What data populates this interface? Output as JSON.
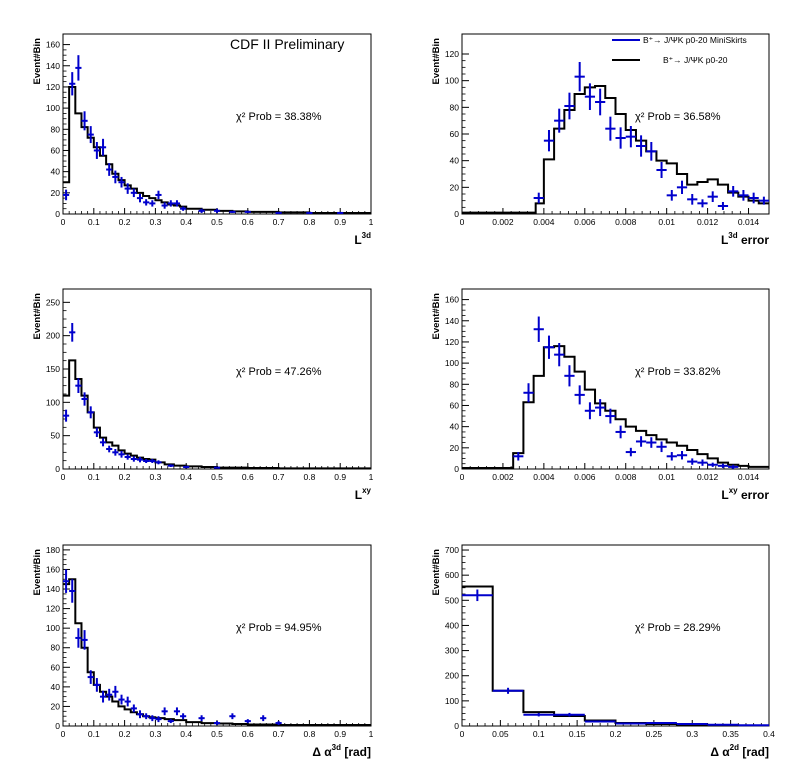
{
  "colors": {
    "data": "#0000cc",
    "mc": "#000000",
    "frame": "#000000"
  },
  "figure_text": {
    "preliminary": "CDF II Preliminary",
    "legend_data": "B⁺→ J/ΨK p0-20 MiniSkirts",
    "legend_mc": "B⁺→ J/ΨK p0-20"
  },
  "chart_data": [
    {
      "type": "histogram",
      "ylabel": "Event#Bin",
      "xlabel_main": "L",
      "xlabel_sup": "3d",
      "xlabel_suffix": "",
      "chi_label": "χ² Prob = 38.38%",
      "xlim": [
        0,
        1
      ],
      "ylim": [
        0,
        170
      ],
      "xticks": [
        0,
        0.1,
        0.2,
        0.3,
        0.4,
        0.5,
        0.6,
        0.7,
        0.8,
        0.9,
        1
      ],
      "xtick_labels": [
        "0",
        "0.1",
        "0.2",
        "0.3",
        "0.4",
        "0.5",
        "0.6",
        "0.7",
        "0.8",
        "0.9",
        "1"
      ],
      "yticks": [
        0,
        20,
        40,
        60,
        80,
        100,
        120,
        140,
        160
      ],
      "ytick_labels": [
        "0",
        "20",
        "40",
        "60",
        "80",
        "100",
        "120",
        "140",
        "160"
      ],
      "mc_edges": [
        0,
        0.02,
        0.04,
        0.06,
        0.08,
        0.1,
        0.12,
        0.14,
        0.16,
        0.18,
        0.2,
        0.22,
        0.24,
        0.26,
        0.28,
        0.3,
        0.32,
        0.34,
        0.36,
        0.38,
        0.4,
        0.45,
        0.5,
        0.55,
        0.6,
        0.7,
        0.8,
        0.9,
        1.0
      ],
      "mc_values": [
        30,
        120,
        95,
        82,
        72,
        63,
        55,
        47,
        38,
        32,
        27,
        24,
        20,
        17,
        15,
        13,
        11,
        9,
        8,
        7,
        5,
        4,
        3,
        2.5,
        2,
        1.5,
        1,
        1
      ],
      "data_x": [
        0.01,
        0.03,
        0.05,
        0.07,
        0.09,
        0.11,
        0.13,
        0.15,
        0.17,
        0.19,
        0.21,
        0.23,
        0.25,
        0.27,
        0.29,
        0.31,
        0.33,
        0.35,
        0.37,
        0.39,
        0.45,
        0.5,
        0.55,
        0.6,
        0.7,
        0.8,
        0.9
      ],
      "data_y": [
        18,
        123,
        138,
        88,
        75,
        60,
        63,
        42,
        35,
        30,
        24,
        20,
        15,
        11,
        10,
        18,
        8,
        10,
        10,
        5,
        3,
        3,
        2,
        2,
        1,
        1,
        1
      ],
      "data_xerr": 0.01,
      "data_yerr": [
        5,
        11,
        12,
        9,
        8,
        8,
        8,
        6,
        6,
        5,
        5,
        4,
        4,
        3,
        3,
        4,
        3,
        3,
        3,
        2,
        2,
        2,
        1,
        1,
        1,
        1,
        1
      ]
    },
    {
      "type": "histogram",
      "ylabel": "Event#Bin",
      "xlabel_main": "L",
      "xlabel_sup": "3d",
      "xlabel_suffix": "error",
      "chi_label": "χ² Prob = 36.58%",
      "xlim": [
        0,
        0.015
      ],
      "ylim": [
        0,
        135
      ],
      "xticks": [
        0,
        0.002,
        0.004,
        0.006,
        0.008,
        0.01,
        0.012,
        0.014
      ],
      "xtick_labels": [
        "0",
        "0.002",
        "0.004",
        "0.006",
        "0.008",
        "0.01",
        "0.012",
        "0.014"
      ],
      "yticks": [
        0,
        20,
        40,
        60,
        80,
        100,
        120
      ],
      "ytick_labels": [
        "0",
        "20",
        "40",
        "60",
        "80",
        "100",
        "120"
      ],
      "mc_edges": [
        0,
        0.0036,
        0.004,
        0.0045,
        0.005,
        0.0055,
        0.006,
        0.0065,
        0.007,
        0.0075,
        0.008,
        0.0085,
        0.009,
        0.0095,
        0.01,
        0.0105,
        0.011,
        0.0115,
        0.012,
        0.0125,
        0.013,
        0.0135,
        0.014,
        0.0145,
        0.015
      ],
      "mc_values": [
        1,
        8,
        41,
        64,
        78,
        90,
        95,
        96,
        87,
        75,
        63,
        55,
        47,
        40,
        38,
        30,
        22,
        24,
        26,
        22,
        16,
        13,
        10,
        8
      ],
      "data_x": [
        0.00375,
        0.00425,
        0.00475,
        0.00525,
        0.00575,
        0.00625,
        0.00675,
        0.00725,
        0.00775,
        0.00825,
        0.00875,
        0.00925,
        0.00975,
        0.01025,
        0.01075,
        0.01125,
        0.01175,
        0.01225,
        0.01275,
        0.01325,
        0.01375,
        0.01425,
        0.01475
      ],
      "data_y": [
        12,
        55,
        70,
        81,
        103,
        88,
        84,
        64,
        57,
        58,
        51,
        47,
        33,
        14,
        20,
        11,
        8,
        13,
        6,
        17,
        14,
        12,
        10
      ],
      "data_xerr": 0.00025,
      "data_yerr": [
        4,
        8,
        9,
        10,
        11,
        10,
        10,
        9,
        8,
        8,
        8,
        7,
        6,
        4,
        5,
        4,
        3,
        4,
        3,
        4,
        4,
        4,
        3
      ]
    },
    {
      "type": "histogram",
      "ylabel": "Event#Bin",
      "xlabel_main": "L",
      "xlabel_sup": "xy",
      "xlabel_suffix": "",
      "chi_label": "χ² Prob = 47.26%",
      "xlim": [
        0,
        1
      ],
      "ylim": [
        0,
        270
      ],
      "xticks": [
        0,
        0.1,
        0.2,
        0.3,
        0.4,
        0.5,
        0.6,
        0.7,
        0.8,
        0.9,
        1
      ],
      "xtick_labels": [
        "0",
        "0.1",
        "0.2",
        "0.3",
        "0.4",
        "0.5",
        "0.6",
        "0.7",
        "0.8",
        "0.9",
        "1"
      ],
      "yticks": [
        0,
        50,
        100,
        150,
        200,
        250
      ],
      "ytick_labels": [
        "0",
        "50",
        "100",
        "150",
        "200",
        "250"
      ],
      "mc_edges": [
        0,
        0.02,
        0.04,
        0.06,
        0.08,
        0.1,
        0.12,
        0.14,
        0.16,
        0.18,
        0.2,
        0.22,
        0.24,
        0.26,
        0.28,
        0.3,
        0.33,
        0.36,
        0.4,
        0.45,
        0.5,
        0.6,
        0.7,
        0.8,
        1.0
      ],
      "mc_values": [
        110,
        163,
        135,
        110,
        85,
        62,
        47,
        40,
        35,
        28,
        23,
        20,
        17,
        15,
        14,
        10,
        7,
        5,
        4,
        3,
        2,
        1.5,
        1,
        1
      ],
      "data_x": [
        0.01,
        0.03,
        0.05,
        0.07,
        0.09,
        0.11,
        0.13,
        0.15,
        0.17,
        0.19,
        0.21,
        0.23,
        0.25,
        0.27,
        0.29,
        0.31,
        0.35,
        0.4,
        0.5
      ],
      "data_y": [
        80,
        205,
        125,
        105,
        85,
        55,
        40,
        30,
        25,
        22,
        18,
        15,
        14,
        12,
        12,
        10,
        5,
        3,
        2
      ],
      "data_xerr": 0.01,
      "data_yerr": [
        9,
        14,
        11,
        10,
        9,
        7,
        6,
        5,
        5,
        5,
        4,
        4,
        4,
        3,
        3,
        3,
        2,
        2,
        1
      ]
    },
    {
      "type": "histogram",
      "ylabel": "Event#Bin",
      "xlabel_main": "L",
      "xlabel_sup": "xy",
      "xlabel_suffix": "error",
      "chi_label": "χ² Prob = 33.82%",
      "xlim": [
        0,
        0.015
      ],
      "ylim": [
        0,
        170
      ],
      "xticks": [
        0,
        0.002,
        0.004,
        0.006,
        0.008,
        0.01,
        0.012,
        0.014
      ],
      "xtick_labels": [
        "0",
        "0.002",
        "0.004",
        "0.006",
        "0.008",
        "0.01",
        "0.012",
        "0.014"
      ],
      "yticks": [
        0,
        20,
        40,
        60,
        80,
        100,
        120,
        140,
        160
      ],
      "ytick_labels": [
        "0",
        "20",
        "40",
        "60",
        "80",
        "100",
        "120",
        "140",
        "160"
      ],
      "mc_edges": [
        0,
        0.0025,
        0.003,
        0.0035,
        0.004,
        0.0045,
        0.005,
        0.0055,
        0.006,
        0.0065,
        0.007,
        0.0075,
        0.008,
        0.0085,
        0.009,
        0.0095,
        0.01,
        0.0105,
        0.011,
        0.0115,
        0.012,
        0.0125,
        0.013,
        0.0135,
        0.014,
        0.015
      ],
      "mc_values": [
        1,
        15,
        63,
        88,
        115,
        116,
        106,
        92,
        75,
        62,
        55,
        47,
        40,
        36,
        32,
        28,
        25,
        22,
        18,
        14,
        10,
        6,
        4,
        3,
        2
      ],
      "data_x": [
        0.00275,
        0.00325,
        0.00375,
        0.00425,
        0.00475,
        0.00525,
        0.00575,
        0.00625,
        0.00675,
        0.00725,
        0.00775,
        0.00825,
        0.00875,
        0.00925,
        0.00975,
        0.01025,
        0.01075,
        0.01125,
        0.01175,
        0.01225,
        0.01275,
        0.01325
      ],
      "data_y": [
        12,
        72,
        132,
        115,
        108,
        88,
        70,
        55,
        58,
        50,
        35,
        16,
        26,
        25,
        21,
        12,
        13,
        7,
        6,
        4,
        3,
        2
      ],
      "data_xerr": 0.00025,
      "data_yerr": [
        4,
        9,
        12,
        11,
        11,
        10,
        9,
        8,
        8,
        7,
        6,
        4,
        5,
        5,
        5,
        4,
        4,
        3,
        3,
        2,
        2,
        2
      ]
    },
    {
      "type": "histogram",
      "ylabel": "Event#Bin",
      "xlabel_main": "Δ α",
      "xlabel_sup": "3d",
      "xlabel_suffix": "[rad]",
      "chi_label": "χ² Prob = 94.95%",
      "xlim": [
        0,
        1
      ],
      "ylim": [
        0,
        185
      ],
      "xticks": [
        0,
        0.1,
        0.2,
        0.3,
        0.4,
        0.5,
        0.6,
        0.7,
        0.8,
        0.9,
        1
      ],
      "xtick_labels": [
        "0",
        "0.1",
        "0.2",
        "0.3",
        "0.4",
        "0.5",
        "0.6",
        "0.7",
        "0.8",
        "0.9",
        "1"
      ],
      "yticks": [
        0,
        20,
        40,
        60,
        80,
        100,
        120,
        140,
        160,
        180
      ],
      "ytick_labels": [
        "0",
        "20",
        "40",
        "60",
        "80",
        "100",
        "120",
        "140",
        "160",
        "180"
      ],
      "mc_edges": [
        0,
        0.02,
        0.04,
        0.06,
        0.08,
        0.1,
        0.12,
        0.14,
        0.16,
        0.18,
        0.2,
        0.22,
        0.24,
        0.26,
        0.28,
        0.3,
        0.33,
        0.36,
        0.4,
        0.45,
        0.5,
        0.55,
        0.6,
        0.7,
        1.0
      ],
      "mc_values": [
        145,
        150,
        105,
        80,
        55,
        42,
        35,
        30,
        25,
        20,
        17,
        14,
        12,
        10,
        9,
        8,
        7,
        6,
        4,
        3,
        2.5,
        2,
        1.5,
        1
      ],
      "data_x": [
        0.01,
        0.03,
        0.05,
        0.07,
        0.09,
        0.11,
        0.13,
        0.15,
        0.17,
        0.19,
        0.21,
        0.23,
        0.25,
        0.27,
        0.29,
        0.31,
        0.33,
        0.35,
        0.37,
        0.39,
        0.45,
        0.5,
        0.55,
        0.6,
        0.65,
        0.7
      ],
      "data_y": [
        148,
        138,
        90,
        88,
        50,
        42,
        30,
        32,
        35,
        27,
        25,
        18,
        12,
        10,
        8,
        7,
        15,
        5,
        15,
        10,
        8,
        3,
        10,
        5,
        8,
        3
      ],
      "data_xerr": 0.01,
      "data_yerr": [
        12,
        12,
        10,
        10,
        7,
        7,
        6,
        6,
        6,
        5,
        5,
        4,
        4,
        3,
        3,
        3,
        4,
        2,
        4,
        3,
        3,
        2,
        3,
        2,
        3,
        2
      ]
    },
    {
      "type": "histogram",
      "ylabel": "Event#Bin",
      "xlabel_main": "Δ α",
      "xlabel_sup": "2d",
      "xlabel_suffix": "[rad]",
      "chi_label": "χ² Prob = 28.29%",
      "xlim": [
        0,
        0.4
      ],
      "ylim": [
        0,
        720
      ],
      "xticks": [
        0,
        0.05,
        0.1,
        0.15,
        0.2,
        0.25,
        0.3,
        0.35,
        0.4
      ],
      "xtick_labels": [
        "0",
        "0.05",
        "0.1",
        "0.15",
        "0.2",
        "0.25",
        "0.3",
        "0.35",
        "0.4"
      ],
      "yticks": [
        0,
        100,
        200,
        300,
        400,
        500,
        600,
        700
      ],
      "ytick_labels": [
        "0",
        "100",
        "200",
        "300",
        "400",
        "500",
        "600",
        "700"
      ],
      "mc_edges": [
        0,
        0.04,
        0.08,
        0.12,
        0.16,
        0.2,
        0.24,
        0.28,
        0.32,
        0.36,
        0.4
      ],
      "mc_values": [
        555,
        140,
        55,
        40,
        22,
        12,
        8,
        5,
        3,
        2
      ],
      "data_x": [
        0.02,
        0.06,
        0.1,
        0.14,
        0.18,
        0.22,
        0.26,
        0.3,
        0.34,
        0.38
      ],
      "data_y": [
        520,
        140,
        45,
        45,
        18,
        10,
        12,
        8,
        5,
        3
      ],
      "data_xerr": 0.02,
      "data_yerr": [
        23,
        12,
        7,
        7,
        4,
        3,
        3,
        3,
        2,
        2
      ]
    }
  ]
}
